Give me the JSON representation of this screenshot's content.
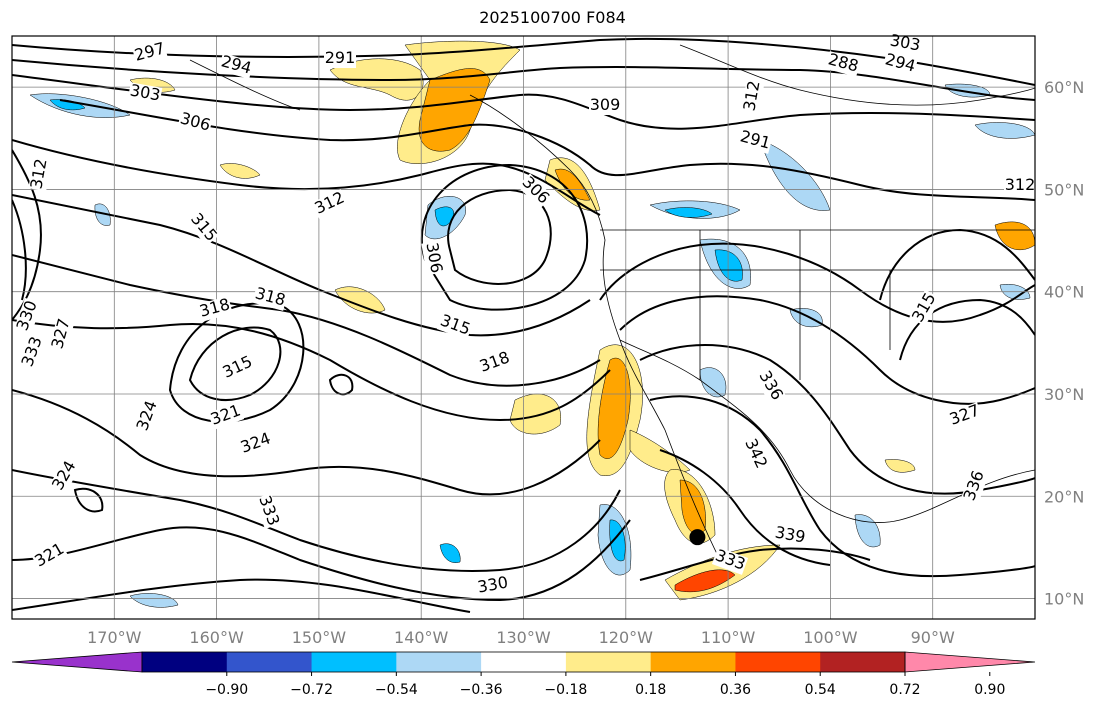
{
  "title": "2025100700 F084",
  "map": {
    "lon_range": [
      -180,
      -80
    ],
    "lat_range": [
      8,
      65
    ],
    "grid_color": "#808080",
    "contour_color": "#000000",
    "lat_labels": [
      "60°N",
      "50°N",
      "40°N",
      "30°N",
      "20°N",
      "10°N"
    ],
    "lat_values": [
      60,
      50,
      40,
      30,
      20,
      10
    ],
    "lon_labels": [
      "170°W",
      "160°W",
      "150°W",
      "140°W",
      "130°W",
      "120°W",
      "110°W",
      "100°W",
      "90°W"
    ],
    "lon_values": [
      -170,
      -160,
      -150,
      -140,
      -130,
      -120,
      -110,
      -100,
      -90
    ],
    "contour_labels": [
      "297",
      "294",
      "291",
      "303",
      "306",
      "312",
      "315",
      "309",
      "312",
      "291",
      "294",
      "288",
      "303",
      "306",
      "312",
      "306",
      "318",
      "318",
      "315",
      "318",
      "315",
      "324",
      "321",
      "324",
      "330",
      "327",
      "333",
      "333",
      "324",
      "321",
      "339",
      "330",
      "333",
      "336",
      "342",
      "336",
      "327",
      "315",
      "312"
    ],
    "marker": {
      "lon": -113,
      "lat": 16
    }
  },
  "colorbar": {
    "colors": [
      "#9932cc",
      "#000080",
      "#3355cc",
      "#00bfff",
      "#add8f5",
      "#ffffff",
      "#ffec8b",
      "#ffa500",
      "#ff4500",
      "#b22222",
      "#ff88aa"
    ],
    "tick_labels": [
      "−0.90",
      "−0.72",
      "−0.54",
      "−0.36",
      "−0.18",
      "0.18",
      "0.36",
      "0.54",
      "0.72",
      "0.90"
    ]
  }
}
